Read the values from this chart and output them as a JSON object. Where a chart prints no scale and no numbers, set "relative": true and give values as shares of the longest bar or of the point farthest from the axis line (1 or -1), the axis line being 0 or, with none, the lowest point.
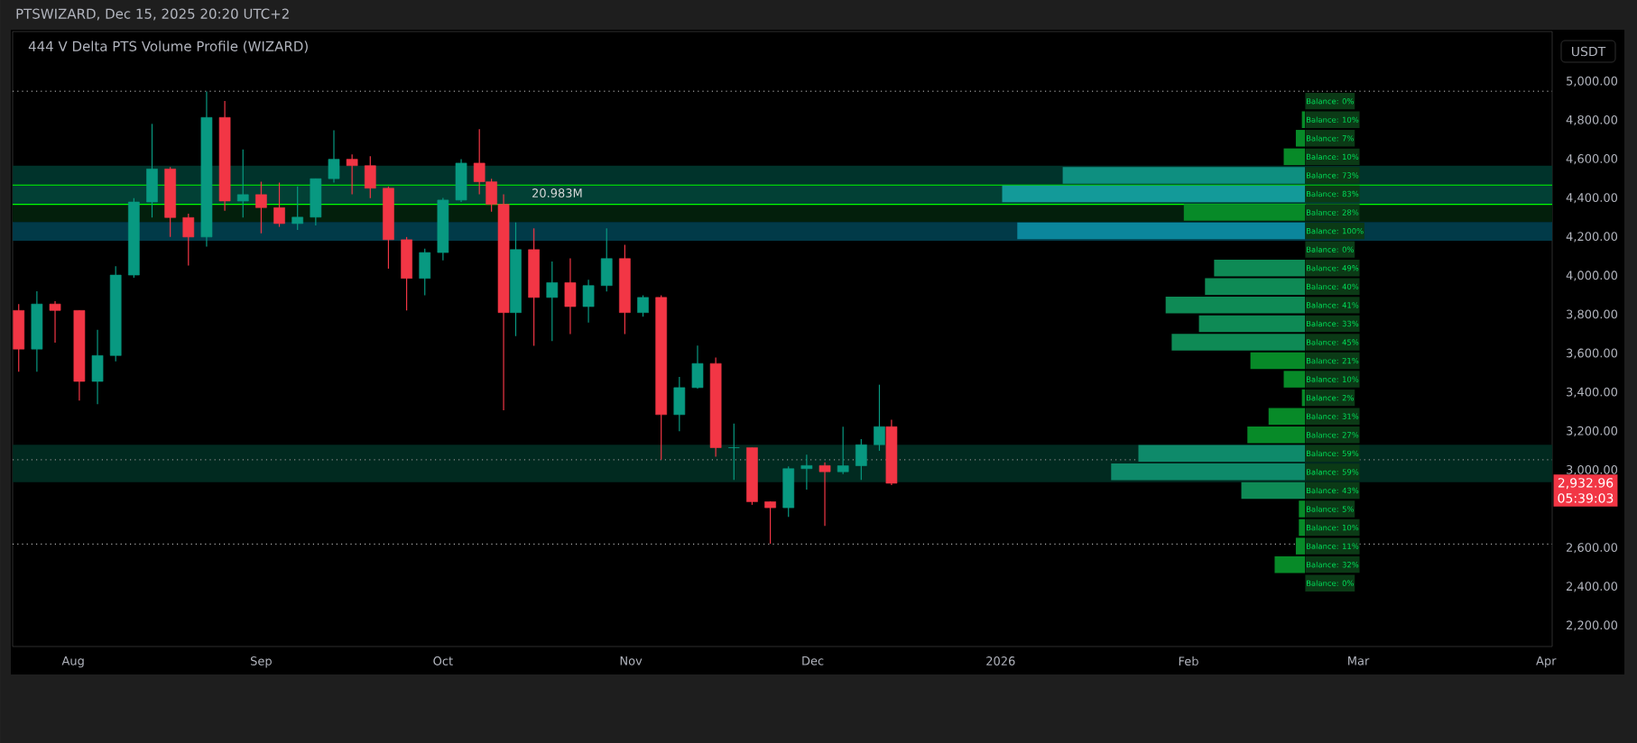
{
  "chart_data": [
    {
      "type": "candlestick",
      "title": "444 V  Delta PTS Volume Profile (WIZARD)",
      "subtitle": "PTSWIZARD, Dec 15, 2025 20:20 UTC+2",
      "x": [
        "2025-07-23",
        "2025-07-26",
        "2025-07-29",
        "2025-08-02",
        "2025-08-05",
        "2025-08-08",
        "2025-08-11",
        "2025-08-14",
        "2025-08-17",
        "2025-08-20",
        "2025-08-23",
        "2025-08-26",
        "2025-08-29",
        "2025-09-01",
        "2025-09-04",
        "2025-09-07",
        "2025-09-10",
        "2025-09-13",
        "2025-09-16",
        "2025-09-19",
        "2025-09-22",
        "2025-09-25",
        "2025-09-28",
        "2025-10-01",
        "2025-10-04",
        "2025-10-07",
        "2025-10-09",
        "2025-10-11",
        "2025-10-13",
        "2025-10-16",
        "2025-10-19",
        "2025-10-22",
        "2025-10-25",
        "2025-10-28",
        "2025-10-31",
        "2025-11-03",
        "2025-11-06",
        "2025-11-09",
        "2025-11-12",
        "2025-11-15",
        "2025-11-18",
        "2025-11-21",
        "2025-11-24",
        "2025-11-27",
        "2025-11-30",
        "2025-12-03",
        "2025-12-06",
        "2025-12-09",
        "2025-12-12",
        "2025-12-14"
      ],
      "ohlc": [
        [
          3822,
          3855,
          3507,
          3623
        ],
        [
          3623,
          3921,
          3507,
          3855
        ],
        [
          3855,
          3870,
          3656,
          3822
        ],
        [
          3822,
          3822,
          3358,
          3457
        ],
        [
          3457,
          3722,
          3340,
          3590
        ],
        [
          3590,
          4050,
          3560,
          4004
        ],
        [
          4004,
          4400,
          3990,
          4380
        ],
        [
          4380,
          4782,
          4300,
          4550
        ],
        [
          4550,
          4560,
          4200,
          4300
        ],
        [
          4300,
          4320,
          4053,
          4200
        ],
        [
          4200,
          4948,
          4150,
          4815
        ],
        [
          4815,
          4900,
          4335,
          4385
        ],
        [
          4385,
          4650,
          4300,
          4418
        ],
        [
          4418,
          4484,
          4219,
          4351
        ],
        [
          4351,
          4480,
          4252,
          4269
        ],
        [
          4269,
          4460,
          4236,
          4302
        ],
        [
          4302,
          4500,
          4260,
          4500
        ],
        [
          4500,
          4749,
          4480,
          4600
        ],
        [
          4600,
          4625,
          4420,
          4567
        ],
        [
          4567,
          4616,
          4400,
          4451
        ],
        [
          4451,
          4460,
          4037,
          4186
        ],
        [
          4186,
          4200,
          3822,
          3987
        ],
        [
          3987,
          4140,
          3900,
          4120
        ],
        [
          4120,
          4401,
          4080,
          4390
        ],
        [
          4390,
          4600,
          4380,
          4580
        ],
        [
          4580,
          4755,
          4420,
          4484
        ],
        [
          4484,
          4500,
          4330,
          4368
        ],
        [
          4368,
          4420,
          3309,
          3811
        ],
        [
          3811,
          4275,
          3690,
          4135
        ],
        [
          4135,
          4244,
          3640,
          3889
        ],
        [
          3889,
          4074,
          3664,
          3965
        ],
        [
          3965,
          4090,
          3700,
          3842
        ],
        [
          3842,
          3980,
          3760,
          3950
        ],
        [
          3950,
          4244,
          3920,
          4089
        ],
        [
          4089,
          4160,
          3700,
          3811
        ],
        [
          3811,
          3900,
          3790,
          3889
        ],
        [
          3889,
          3900,
          3054,
          3286
        ],
        [
          3286,
          3480,
          3200,
          3425
        ],
        [
          3425,
          3641,
          3420,
          3549
        ],
        [
          3549,
          3580,
          3070,
          3116
        ],
        [
          3116,
          3240,
          2950,
          3116
        ],
        [
          3116,
          3116,
          2822,
          2838
        ],
        [
          2838,
          2840,
          2622,
          2807
        ],
        [
          2807,
          3020,
          2760,
          3008
        ],
        [
          3008,
          3080,
          2900,
          3024
        ],
        [
          3024,
          3040,
          2714,
          2992
        ],
        [
          2992,
          3224,
          2980,
          3023
        ],
        [
          3023,
          3160,
          2950,
          3131
        ],
        [
          3131,
          3440,
          3100,
          3224
        ],
        [
          3224,
          3260,
          2923,
          2932.96
        ]
      ],
      "colors": [
        "#f23645",
        "#089981",
        "#f23645",
        "#f23645",
        "#089981",
        "#089981",
        "#089981",
        "#089981",
        "#f23645",
        "#f23645",
        "#089981",
        "#f23645",
        "#089981",
        "#f23645",
        "#f23645",
        "#089981",
        "#089981",
        "#089981",
        "#f23645",
        "#f23645",
        "#f23645",
        "#f23645",
        "#089981",
        "#089981",
        "#089981",
        "#f23645",
        "#f23645",
        "#f23645",
        "#089981",
        "#f23645",
        "#089981",
        "#f23645",
        "#089981",
        "#089981",
        "#f23645",
        "#089981",
        "#f23645",
        "#089981",
        "#089981",
        "#f23645",
        "#089981",
        "#f23645",
        "#f23645",
        "#089981",
        "#089981",
        "#f23645",
        "#089981",
        "#089981",
        "#089981",
        "#f23645"
      ],
      "xlim": [
        "2025-07-22",
        "2026-04-02"
      ],
      "xticks": [
        {
          "value": "2025-08-01",
          "label": "Aug"
        },
        {
          "value": "2025-09-01",
          "label": "Sep"
        },
        {
          "value": "2025-10-01",
          "label": "Oct"
        },
        {
          "value": "2025-11-01",
          "label": "Nov"
        },
        {
          "value": "2025-12-01",
          "label": "Dec"
        },
        {
          "value": "2026-01-01",
          "label": "2026"
        },
        {
          "value": "2026-02-01",
          "label": "Feb"
        },
        {
          "value": "2026-03-01",
          "label": "Mar"
        },
        {
          "value": "2026-04-01",
          "label": "Apr"
        }
      ],
      "ylim": [
        2093,
        5257
      ],
      "yticks": [
        {
          "value": 2200,
          "label": "2,200.00"
        },
        {
          "value": 2400,
          "label": "2,400.00"
        },
        {
          "value": 2600,
          "label": "2,600.00"
        },
        {
          "value": 3000,
          "label": "3,000.00"
        },
        {
          "value": 3200,
          "label": "3,200.00"
        },
        {
          "value": 3400,
          "label": "3,400.00"
        },
        {
          "value": 3600,
          "label": "3,600.00"
        },
        {
          "value": 3800,
          "label": "3,800.00"
        },
        {
          "value": 4000,
          "label": "4,000.00"
        },
        {
          "value": 4200,
          "label": "4,200.00"
        },
        {
          "value": 4400,
          "label": "4,400.00"
        },
        {
          "value": 4600,
          "label": "4,600.00"
        },
        {
          "value": 4800,
          "label": "4,800.00"
        },
        {
          "value": 5000,
          "label": "5,000.00"
        }
      ],
      "bands": [
        {
          "axis": "y",
          "from": 4467,
          "to": 4567,
          "color": "#00332b"
        },
        {
          "axis": "y",
          "from": 4368,
          "to": 4467,
          "color": "#024035"
        },
        {
          "axis": "y",
          "from": 4277,
          "to": 4368,
          "color": "#031f0c"
        },
        {
          "axis": "y",
          "from": 4181,
          "to": 4277,
          "color": "#013a48"
        },
        {
          "axis": "y",
          "from": 2938,
          "to": 3131,
          "color": "#012a20"
        }
      ],
      "ref_lines": [
        {
          "axis": "y",
          "value": 4467,
          "color": "#00ff00",
          "line_style": "solid"
        },
        {
          "axis": "y",
          "value": 4368,
          "color": "#00ff00",
          "line_style": "solid"
        },
        {
          "axis": "y",
          "value": 4950,
          "color": "#b0b0b0",
          "line_style": "dotted"
        },
        {
          "axis": "y",
          "value": 2620,
          "color": "#b0b0b0",
          "line_style": "dotted"
        },
        {
          "axis": "y",
          "value": 3054,
          "color": "#8a8a8a",
          "line_style": "dotted"
        }
      ],
      "annotations": [
        "USDT",
        "2,932.96",
        "05:39:03",
        "20.983M"
      ],
      "grid": false
    },
    {
      "type": "bar",
      "orientation": "horizontal",
      "relative": true,
      "values": [
        0,
        0.01,
        0.03,
        0.07,
        0.8,
        1,
        0.4,
        0.95,
        0,
        0.3,
        0.33,
        0.46,
        0.35,
        0.44,
        0.18,
        0.07,
        0.01,
        0.12,
        0.19,
        0.55,
        0.64,
        0.21,
        0.02,
        0.02,
        0.03,
        0.1,
        0
      ],
      "colors": [
        "#078a28",
        "#078a28",
        "#078a28",
        "#078a28",
        "#0e8f80",
        "#139a99",
        "#078a28",
        "#0b869c",
        "#078a28",
        "#0e8a55",
        "#0e8a55",
        "#0e8a55",
        "#0e8a55",
        "#0e8a55",
        "#078a28",
        "#078a28",
        "#078a28",
        "#078a28",
        "#078a28",
        "#0e8a6a",
        "#0e8a6a",
        "#0e8a55",
        "#078a28",
        "#078a28",
        "#078a28",
        "#078a28",
        "#078a28"
      ],
      "categories": [
        "Balance: 0%",
        "Balance: 10%",
        "Balance: 7%",
        "Balance: 10%",
        "Balance: 73%",
        "Balance: 83%",
        "Balance: 28%",
        "Balance: 100%",
        "Balance: 0%",
        "Balance: 49%",
        "Balance: 40%",
        "Balance: 41%",
        "Balance: 33%",
        "Balance: 45%",
        "Balance: 21%",
        "Balance: 10%",
        "Balance: 2%",
        "Balance: 31%",
        "Balance: 27%",
        "Balance: 59%",
        "Balance: 59%",
        "Balance: 43%",
        "Balance: 5%",
        "Balance: 10%",
        "Balance: 11%",
        "Balance: 32%",
        "Balance: 0%"
      ]
    }
  ]
}
